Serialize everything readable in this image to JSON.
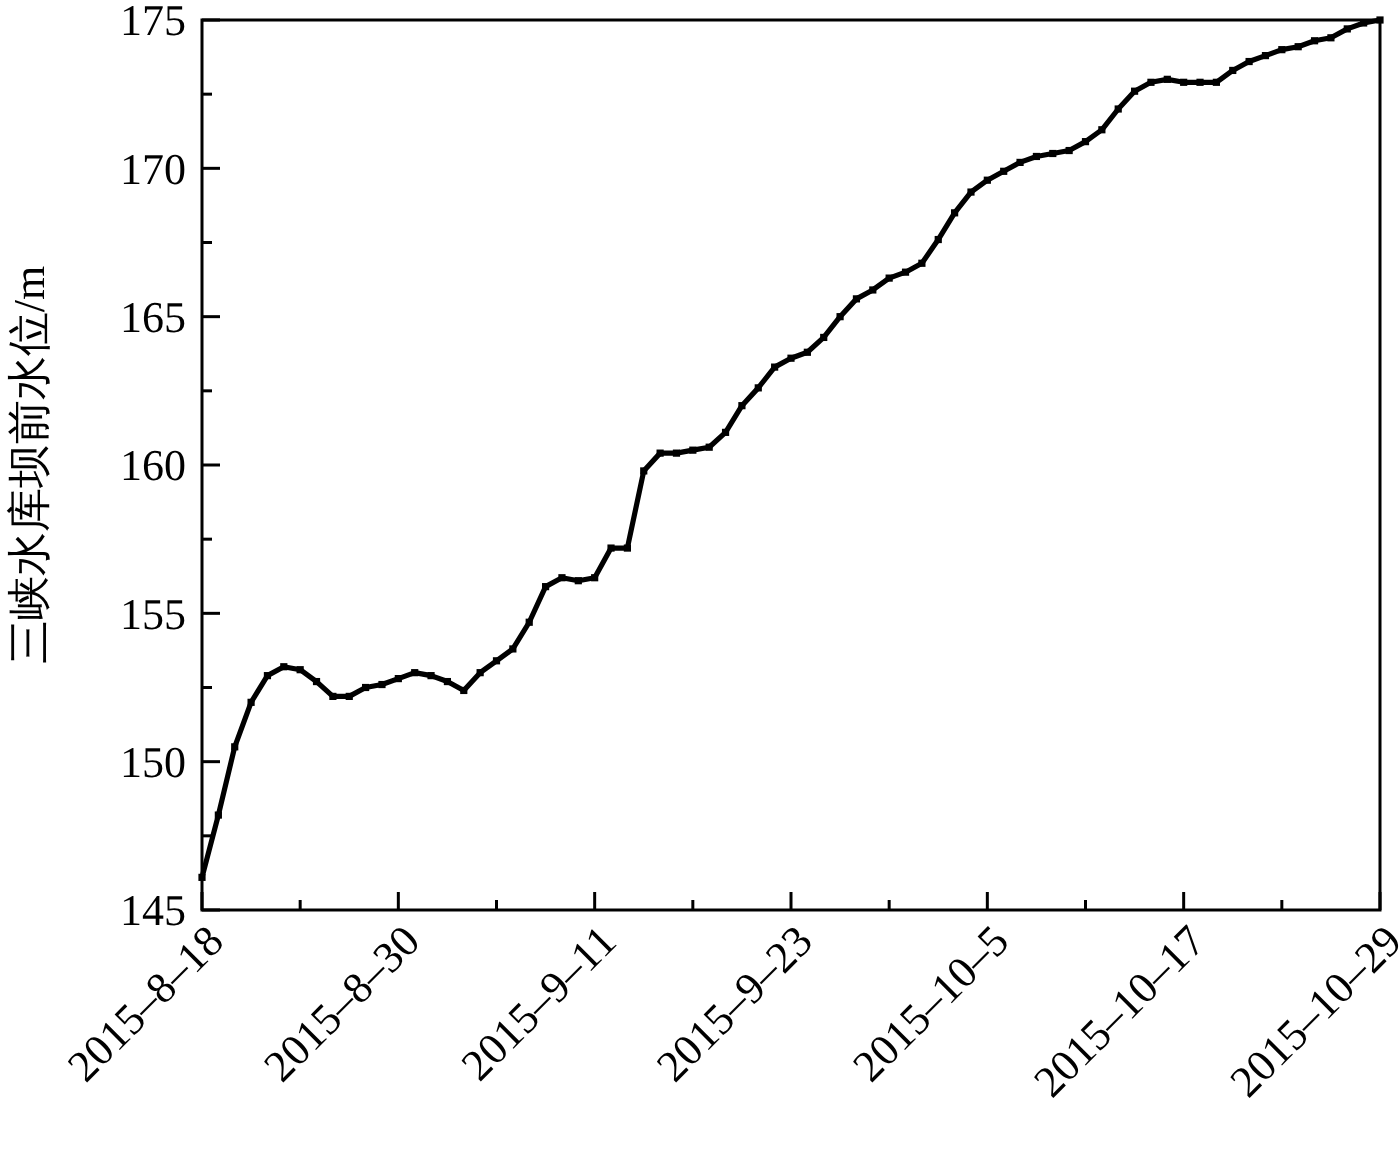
{
  "chart_data": {
    "type": "line",
    "ylabel": "三峡水库坝前水位/m",
    "marker": "square",
    "line_style": "solid",
    "grid": false,
    "x": [
      "2015-08-18",
      "2015-08-19",
      "2015-08-20",
      "2015-08-21",
      "2015-08-22",
      "2015-08-23",
      "2015-08-24",
      "2015-08-25",
      "2015-08-26",
      "2015-08-27",
      "2015-08-28",
      "2015-08-29",
      "2015-08-30",
      "2015-08-31",
      "2015-09-01",
      "2015-09-02",
      "2015-09-03",
      "2015-09-04",
      "2015-09-05",
      "2015-09-06",
      "2015-09-07",
      "2015-09-08",
      "2015-09-09",
      "2015-09-10",
      "2015-09-11",
      "2015-09-12",
      "2015-09-13",
      "2015-09-14",
      "2015-09-15",
      "2015-09-16",
      "2015-09-17",
      "2015-09-18",
      "2015-09-19",
      "2015-09-20",
      "2015-09-21",
      "2015-09-22",
      "2015-09-23",
      "2015-09-24",
      "2015-09-25",
      "2015-09-26",
      "2015-09-27",
      "2015-09-28",
      "2015-09-29",
      "2015-09-30",
      "2015-10-01",
      "2015-10-02",
      "2015-10-03",
      "2015-10-04",
      "2015-10-05",
      "2015-10-06",
      "2015-10-07",
      "2015-10-08",
      "2015-10-09",
      "2015-10-10",
      "2015-10-11",
      "2015-10-12",
      "2015-10-13",
      "2015-10-14",
      "2015-10-15",
      "2015-10-16",
      "2015-10-17",
      "2015-10-18",
      "2015-10-19",
      "2015-10-20",
      "2015-10-21",
      "2015-10-22",
      "2015-10-23",
      "2015-10-24",
      "2015-10-25",
      "2015-10-26",
      "2015-10-27",
      "2015-10-28",
      "2015-10-29"
    ],
    "series": [
      {
        "color": "#000000",
        "values": [
          146.1,
          148.2,
          150.5,
          152.0,
          152.9,
          153.2,
          153.1,
          152.7,
          152.2,
          152.2,
          152.5,
          152.6,
          152.8,
          153.0,
          152.9,
          152.7,
          152.4,
          153.0,
          153.4,
          153.8,
          154.7,
          155.9,
          156.2,
          156.1,
          156.2,
          157.2,
          157.2,
          159.8,
          160.4,
          160.4,
          160.5,
          160.6,
          161.1,
          162.0,
          162.6,
          163.3,
          163.6,
          163.8,
          164.3,
          165.0,
          165.6,
          165.9,
          166.3,
          166.5,
          166.8,
          167.6,
          168.5,
          169.2,
          169.6,
          169.9,
          170.2,
          170.4,
          170.5,
          170.6,
          170.9,
          171.3,
          172.0,
          172.6,
          172.9,
          173.0,
          172.9,
          172.9,
          172.9,
          173.3,
          173.6,
          173.8,
          174.0,
          174.1,
          174.3,
          174.4,
          174.7,
          174.9,
          175.0
        ]
      }
    ],
    "xlim": [
      "2015-08-18",
      "2015-10-29"
    ],
    "xticks": [
      {
        "value": "2015-08-18",
        "label": "2015–8–18"
      },
      {
        "value": "2015-08-24",
        "label": null
      },
      {
        "value": "2015-08-30",
        "label": "2015–8–30"
      },
      {
        "value": "2015-09-05",
        "label": null
      },
      {
        "value": "2015-09-11",
        "label": "2015–9–11"
      },
      {
        "value": "2015-09-17",
        "label": null
      },
      {
        "value": "2015-09-23",
        "label": "2015–9–23"
      },
      {
        "value": "2015-09-29",
        "label": null
      },
      {
        "value": "2015-10-05",
        "label": "2015–10–5"
      },
      {
        "value": "2015-10-11",
        "label": null
      },
      {
        "value": "2015-10-17",
        "label": "2015–10–17"
      },
      {
        "value": "2015-10-23",
        "label": null
      },
      {
        "value": "2015-10-29",
        "label": "2015–10–29"
      }
    ],
    "ylim": [
      145,
      175
    ],
    "yticks": [
      145,
      {
        "value": 147.5,
        "label": null
      },
      150,
      {
        "value": 152.5,
        "label": null
      },
      155,
      {
        "value": 157.5,
        "label": null
      },
      160,
      {
        "value": 162.5,
        "label": null
      },
      165,
      {
        "value": 167.5,
        "label": null
      },
      170,
      {
        "value": 172.5,
        "label": null
      },
      175
    ]
  }
}
